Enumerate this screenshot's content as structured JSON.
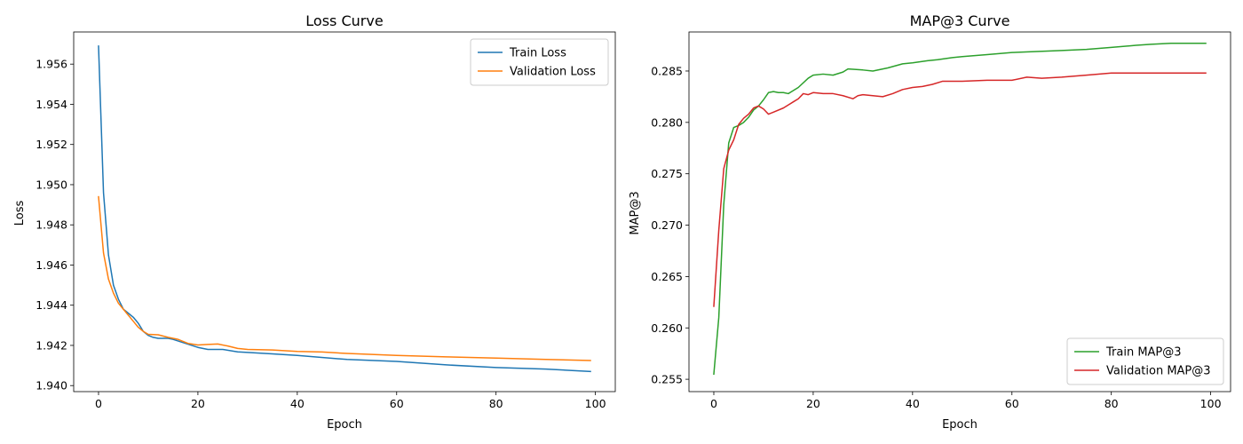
{
  "chart_data": [
    {
      "type": "line",
      "title": "Loss Curve",
      "xlabel": "Epoch",
      "ylabel": "Loss",
      "xlim": [
        -5,
        104
      ],
      "ylim": [
        1.9397,
        1.9576
      ],
      "x_ticks": [
        0,
        20,
        40,
        60,
        80,
        100
      ],
      "y_ticks": [
        1.94,
        1.942,
        1.944,
        1.946,
        1.948,
        1.95,
        1.952,
        1.954,
        1.956
      ],
      "y_tick_labels": [
        "1.940",
        "1.942",
        "1.944",
        "1.946",
        "1.948",
        "1.950",
        "1.952",
        "1.954",
        "1.956"
      ],
      "grid": false,
      "legend_position": "top-right",
      "series": [
        {
          "name": "Train Loss",
          "color": "#1f77b4",
          "points": [
            [
              0,
              1.9569
            ],
            [
              1,
              1.9496
            ],
            [
              2,
              1.9465
            ],
            [
              3,
              1.945
            ],
            [
              4,
              1.9443
            ],
            [
              5,
              1.9438
            ],
            [
              6,
              1.9436
            ],
            [
              7,
              1.9434
            ],
            [
              8,
              1.9431
            ],
            [
              9,
              1.9427
            ],
            [
              10,
              1.9425
            ],
            [
              11,
              1.9424
            ],
            [
              12,
              1.94235
            ],
            [
              13,
              1.94235
            ],
            [
              14,
              1.94235
            ],
            [
              15,
              1.9423
            ],
            [
              20,
              1.9419
            ],
            [
              22,
              1.9418
            ],
            [
              25,
              1.9418
            ],
            [
              28,
              1.94168
            ],
            [
              30,
              1.94165
            ],
            [
              35,
              1.94158
            ],
            [
              40,
              1.9415
            ],
            [
              50,
              1.9413
            ],
            [
              60,
              1.9412
            ],
            [
              70,
              1.94103
            ],
            [
              80,
              1.9409
            ],
            [
              90,
              1.94082
            ],
            [
              99,
              1.9407
            ]
          ]
        },
        {
          "name": "Validation Loss",
          "color": "#ff7f0e",
          "points": [
            [
              0,
              1.9494
            ],
            [
              1,
              1.9466
            ],
            [
              2,
              1.9453
            ],
            [
              3,
              1.9446
            ],
            [
              4,
              1.9441
            ],
            [
              5,
              1.9438
            ],
            [
              6,
              1.9435
            ],
            [
              7,
              1.9432
            ],
            [
              8,
              1.9429
            ],
            [
              9,
              1.9427
            ],
            [
              10,
              1.94255
            ],
            [
              12,
              1.94253
            ],
            [
              14,
              1.9424
            ],
            [
              16,
              1.9423
            ],
            [
              18,
              1.9421
            ],
            [
              20,
              1.94202
            ],
            [
              22,
              1.94205
            ],
            [
              24,
              1.94207
            ],
            [
              26,
              1.94197
            ],
            [
              28,
              1.94185
            ],
            [
              30,
              1.9418
            ],
            [
              35,
              1.94177
            ],
            [
              40,
              1.9417
            ],
            [
              45,
              1.94167
            ],
            [
              50,
              1.9416
            ],
            [
              60,
              1.9415
            ],
            [
              70,
              1.94143
            ],
            [
              80,
              1.94137
            ],
            [
              90,
              1.9413
            ],
            [
              99,
              1.94125
            ]
          ]
        }
      ]
    },
    {
      "type": "line",
      "title": "MAP@3 Curve",
      "xlabel": "Epoch",
      "ylabel": "MAP@3",
      "xlim": [
        -5,
        104
      ],
      "ylim": [
        0.2538,
        0.2888
      ],
      "x_ticks": [
        0,
        20,
        40,
        60,
        80,
        100
      ],
      "y_ticks": [
        0.255,
        0.26,
        0.265,
        0.27,
        0.275,
        0.28,
        0.285
      ],
      "y_tick_labels": [
        "0.255",
        "0.260",
        "0.265",
        "0.270",
        "0.275",
        "0.280",
        "0.285"
      ],
      "grid": false,
      "legend_position": "bottom-right",
      "series": [
        {
          "name": "Train MAP@3",
          "color": "#2ca02c",
          "points": [
            [
              0,
              0.2555
            ],
            [
              1,
              0.261
            ],
            [
              2,
              0.272
            ],
            [
              3,
              0.278
            ],
            [
              4,
              0.2795
            ],
            [
              5,
              0.2797
            ],
            [
              6,
              0.28
            ],
            [
              7,
              0.2805
            ],
            [
              8,
              0.2812
            ],
            [
              9,
              0.2816
            ],
            [
              10,
              0.2822
            ],
            [
              11,
              0.2829
            ],
            [
              12,
              0.283
            ],
            [
              13,
              0.2829
            ],
            [
              14,
              0.2829
            ],
            [
              15,
              0.2828
            ],
            [
              17,
              0.2834
            ],
            [
              19,
              0.2843
            ],
            [
              20,
              0.2846
            ],
            [
              22,
              0.2847
            ],
            [
              24,
              0.2846
            ],
            [
              26,
              0.2849
            ],
            [
              27,
              0.2852
            ],
            [
              30,
              0.2851
            ],
            [
              32,
              0.285
            ],
            [
              35,
              0.2853
            ],
            [
              38,
              0.2857
            ],
            [
              40,
              0.2858
            ],
            [
              43,
              0.286
            ],
            [
              45,
              0.2861
            ],
            [
              48,
              0.2863
            ],
            [
              50,
              0.2864
            ],
            [
              55,
              0.2866
            ],
            [
              60,
              0.2868
            ],
            [
              65,
              0.2869
            ],
            [
              70,
              0.287
            ],
            [
              75,
              0.2871
            ],
            [
              80,
              0.2873
            ],
            [
              85,
              0.2875
            ],
            [
              88,
              0.2876
            ],
            [
              92,
              0.2877
            ],
            [
              99,
              0.2877
            ]
          ]
        },
        {
          "name": "Validation MAP@3",
          "color": "#d62728",
          "points": [
            [
              0,
              0.2621
            ],
            [
              1,
              0.2695
            ],
            [
              2,
              0.2755
            ],
            [
              3,
              0.2773
            ],
            [
              4,
              0.2783
            ],
            [
              5,
              0.2798
            ],
            [
              6,
              0.2804
            ],
            [
              7,
              0.2808
            ],
            [
              8,
              0.2814
            ],
            [
              9,
              0.2816
            ],
            [
              10,
              0.2813
            ],
            [
              11,
              0.2808
            ],
            [
              12,
              0.281
            ],
            [
              14,
              0.2814
            ],
            [
              16,
              0.282
            ],
            [
              17,
              0.2823
            ],
            [
              18,
              0.2828
            ],
            [
              19,
              0.2827
            ],
            [
              20,
              0.2829
            ],
            [
              22,
              0.2828
            ],
            [
              24,
              0.2828
            ],
            [
              26,
              0.2826
            ],
            [
              28,
              0.2823
            ],
            [
              29,
              0.2826
            ],
            [
              30,
              0.2827
            ],
            [
              32,
              0.2826
            ],
            [
              34,
              0.2825
            ],
            [
              36,
              0.2828
            ],
            [
              38,
              0.2832
            ],
            [
              40,
              0.2834
            ],
            [
              42,
              0.2835
            ],
            [
              44,
              0.2837
            ],
            [
              46,
              0.284
            ],
            [
              48,
              0.284
            ],
            [
              50,
              0.284
            ],
            [
              55,
              0.2841
            ],
            [
              60,
              0.2841
            ],
            [
              63,
              0.2844
            ],
            [
              66,
              0.2843
            ],
            [
              70,
              0.2844
            ],
            [
              75,
              0.2846
            ],
            [
              80,
              0.2848
            ],
            [
              85,
              0.2848
            ],
            [
              90,
              0.2848
            ],
            [
              95,
              0.2848
            ],
            [
              99,
              0.2848
            ]
          ]
        }
      ]
    }
  ]
}
